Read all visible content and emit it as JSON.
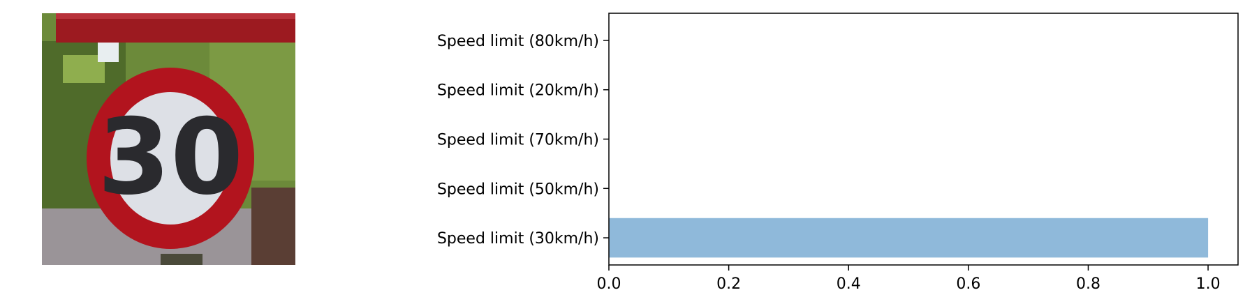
{
  "image": {
    "description_icon": "speed-limit-30-sign-image",
    "sign_text": "30"
  },
  "colors": {
    "bar": "#8fb9da",
    "axis": "#000000",
    "sign_red": "#b2141e",
    "sign_white": "#dde0e6",
    "foliage": "#5a7a2e"
  },
  "chart_data": {
    "type": "bar",
    "orientation": "horizontal",
    "categories": [
      "Speed limit (30km/h)",
      "Speed limit (50km/h)",
      "Speed limit (70km/h)",
      "Speed limit (20km/h)",
      "Speed limit (80km/h)"
    ],
    "values": [
      1.0,
      0.0,
      0.0,
      0.0,
      0.0
    ],
    "title": "",
    "xlabel": "",
    "ylabel": "",
    "xlim": [
      0,
      1.05
    ],
    "xticks": [
      0.0,
      0.2,
      0.4,
      0.6,
      0.8,
      1.0
    ],
    "xtick_labels": [
      "0.0",
      "0.2",
      "0.4",
      "0.6",
      "0.8",
      "1.0"
    ],
    "grid": false,
    "legend": "none"
  }
}
